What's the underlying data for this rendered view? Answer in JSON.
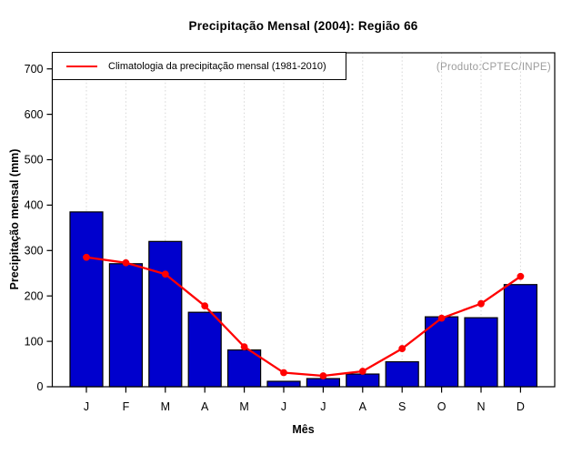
{
  "title": "Precipitação Mensal (2004): Região 66",
  "annotation": "(Produto:CPTEC/INPE)",
  "legend": {
    "label": "Climatologia da precipitação mensal (1981-2010)"
  },
  "colors": {
    "bar": "#0000CD",
    "bar_border": "#000000",
    "climatology_line": "#FF0000",
    "annotation_text": "#9C9C9C",
    "grid": "#D6D6D6",
    "axis": "#000000"
  },
  "chart_data": {
    "type": "bar",
    "title": "Precipitação Mensal (2004): Região 66",
    "categories": [
      "J",
      "F",
      "M",
      "A",
      "M",
      "J",
      "J",
      "A",
      "S",
      "O",
      "N",
      "D"
    ],
    "series": [
      {
        "name": "Precipitação mensal 2004",
        "type": "bar",
        "values": [
          385,
          271,
          320,
          164,
          81,
          12,
          18,
          28,
          55,
          154,
          152,
          225
        ]
      },
      {
        "name": "Climatologia da precipitação mensal (1981-2010)",
        "type": "line",
        "values": [
          285,
          273,
          248,
          178,
          88,
          31,
          24,
          34,
          84,
          151,
          183,
          243
        ]
      }
    ],
    "xlabel": "Mês",
    "ylabel": "Precipitação mensal (mm)",
    "ylim": [
      0,
      700
    ],
    "yticks": [
      0,
      100,
      200,
      300,
      400,
      500,
      600,
      700
    ],
    "grid": "vertical-dotted",
    "legend_position": "top-left",
    "annotation": "(Produto:CPTEC/INPE)"
  }
}
